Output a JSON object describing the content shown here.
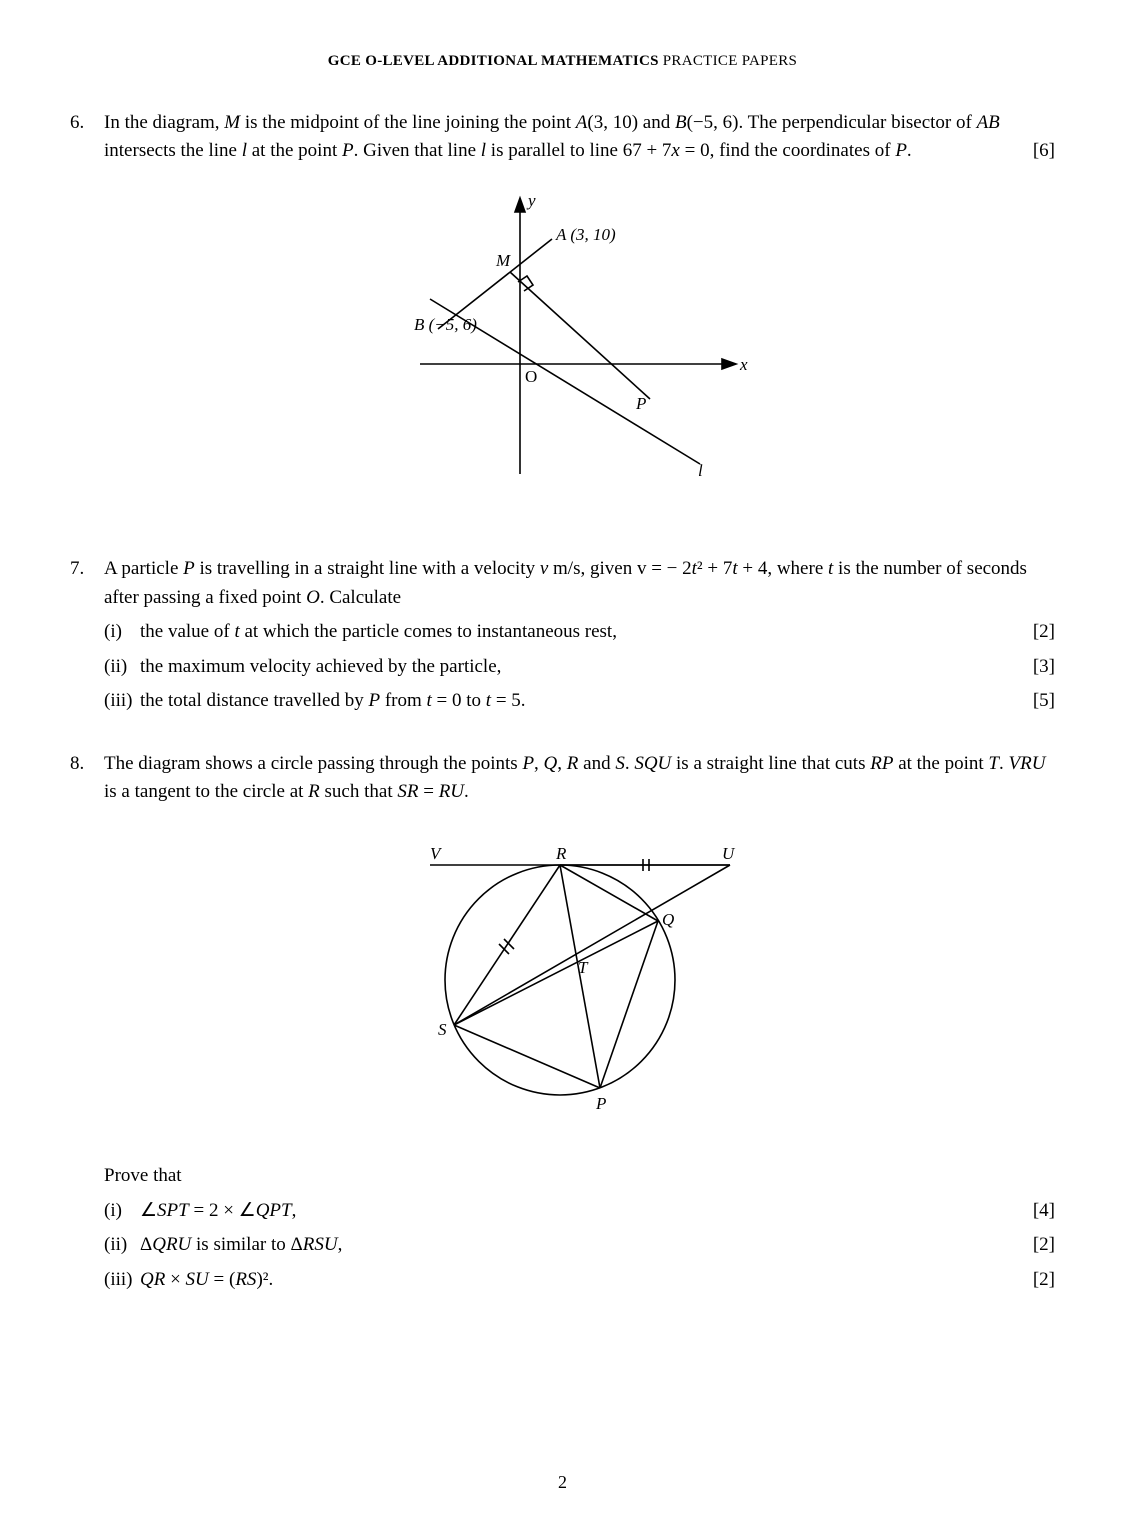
{
  "header": {
    "bold": "GCE O-LEVEL ADDITIONAL MATHEMATICS",
    "light": " PRACTICE PAPERS"
  },
  "page_number": "2",
  "q6": {
    "num": "6.",
    "text_parts": [
      "In the diagram, ",
      "M",
      " is the midpoint of the line joining the point ",
      "A",
      "(3, 10) and ",
      "B",
      "(−5, 6). The perpendicular bisector of ",
      "AB",
      " intersects the line ",
      "l",
      " at the point ",
      "P",
      ". Given that line ",
      "l",
      " is parallel to line 67 + 7",
      "x",
      " = 0, find the coordinates of ",
      "P",
      "."
    ],
    "marks": "[6]",
    "diagram": {
      "stroke": "#000000",
      "stroke_width": 1.6,
      "y_label": "y",
      "x_label": "x",
      "O_label": "O",
      "A_label": "A (3, 10)",
      "B_label": "B (−5, 6)",
      "M_label": "M",
      "P_label": "P",
      "l_label": "l"
    }
  },
  "q7": {
    "num": "7.",
    "intro_parts": [
      "A particle ",
      "P",
      " is travelling in a straight line with a velocity ",
      "v",
      " m/s, given v = − 2",
      "t",
      "² + 7",
      "t",
      " + 4, where ",
      "t",
      " is the number of seconds after passing a fixed point ",
      "O",
      ". Calculate"
    ],
    "parts": [
      {
        "label": "(i)",
        "text_parts": [
          "the value of ",
          "t",
          " at which the particle comes to instantaneous rest,"
        ],
        "marks": "[2]"
      },
      {
        "label": "(ii)",
        "text_parts": [
          "the maximum velocity achieved by the particle,"
        ],
        "marks": "[3]"
      },
      {
        "label": "(iii)",
        "text_parts": [
          "the total distance travelled by ",
          "P",
          " from ",
          "t",
          " = 0 to ",
          "t",
          " = 5."
        ],
        "marks": "[5]"
      }
    ]
  },
  "q8": {
    "num": "8.",
    "intro_parts": [
      "The diagram shows a circle passing through the points ",
      "P",
      ", ",
      "Q",
      ", ",
      "R",
      " and ",
      "S",
      ". ",
      "SQU",
      " is a straight line that cuts ",
      "RP",
      " at the point ",
      "T",
      ". ",
      "VRU",
      " is a tangent to the circle at ",
      "R",
      " such that ",
      "SR",
      " = ",
      "RU",
      "."
    ],
    "diagram": {
      "stroke": "#000000",
      "stroke_width": 1.6,
      "labels": {
        "V": "V",
        "R": "R",
        "U": "U",
        "Q": "Q",
        "T": "T",
        "S": "S",
        "P": "P"
      }
    },
    "prove_label": "Prove that",
    "parts": [
      {
        "label": "(i)",
        "text_parts": [
          "∠",
          "SPT",
          " = 2 × ∠",
          "QPT",
          ","
        ],
        "marks": "[4]"
      },
      {
        "label": "(ii)",
        "text_parts": [
          "Δ",
          "QRU",
          " is similar to Δ",
          "RSU",
          ","
        ],
        "marks": "[2]"
      },
      {
        "label": "(iii)",
        "text_parts": [
          "",
          "QR",
          " × ",
          "SU",
          " = (",
          "RS",
          ")²."
        ],
        "marks": "[2]"
      }
    ]
  }
}
